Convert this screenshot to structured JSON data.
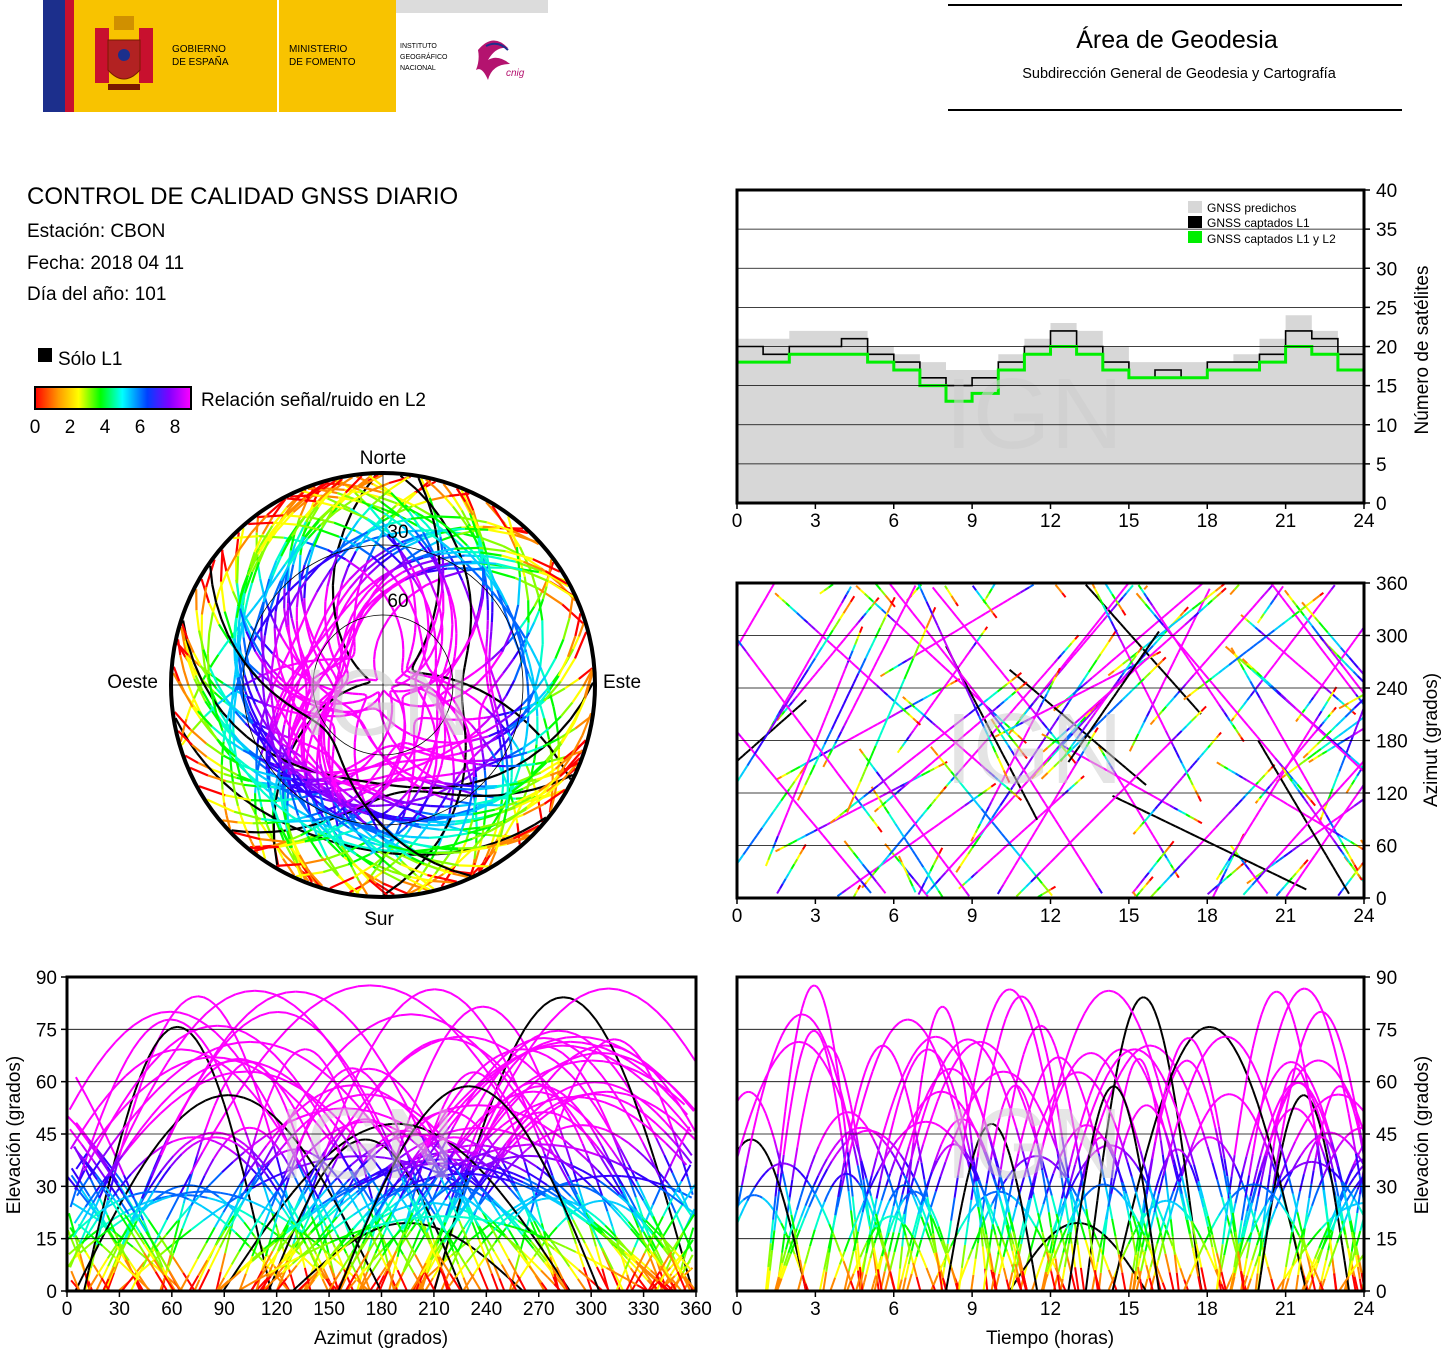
{
  "header": {
    "gov_line1": "GOBIERNO",
    "gov_line2": "DE ESPAÑA",
    "min_line1": "MINISTERIO",
    "min_line2": "DE FOMENTO",
    "ign_line1": "INSTITUTO",
    "ign_line2": "GEOGRÁFICO",
    "ign_line3": "NACIONAL",
    "cnig": "cnig",
    "area_title": "Área de Geodesia",
    "area_subtitle": "Subdirección General de Geodesia y Cartografía"
  },
  "info": {
    "title": "CONTROL DE CALIDAD GNSS DIARIO",
    "station": "Estación: CBON",
    "date": "Fecha: 2018 04 11",
    "doy": "Día del año: 101"
  },
  "legend": {
    "l1_only": "Sólo L1",
    "snr_label": "Relación señal/ruido en L2",
    "snr_ticks": [
      "0",
      "2",
      "4",
      "6",
      "8"
    ]
  },
  "watermark": "IGN",
  "colors": {
    "predicted": "#d7d7d7",
    "captured_l1": "#000000",
    "captured_l1l2": "#00ee00",
    "frame": "#000000",
    "grid": "#000000"
  },
  "chart_data": [
    {
      "id": "skyplot",
      "type": "scatter",
      "projection": "polar",
      "directions": {
        "north": "Norte",
        "south": "Sur",
        "east": "Este",
        "west": "Oeste"
      },
      "rings": [
        "30",
        "60"
      ],
      "r_ticks": [
        30,
        60
      ]
    },
    {
      "id": "satellites",
      "type": "line",
      "ylabel": "Número de satélites",
      "xlim": [
        0,
        24
      ],
      "ylim": [
        0,
        40
      ],
      "x_ticks": [
        "0",
        "3",
        "6",
        "9",
        "12",
        "15",
        "18",
        "21",
        "24"
      ],
      "y_ticks": [
        "0",
        "5",
        "10",
        "15",
        "20",
        "25",
        "30",
        "35",
        "40"
      ],
      "grid": true,
      "legend_position": "top-right",
      "series": [
        {
          "name": "GNSS predichos",
          "color": "#d7d7d7",
          "x": [
            0,
            1,
            2,
            3,
            4,
            5,
            6,
            7,
            8,
            9,
            10,
            11,
            12,
            13,
            14,
            15,
            16,
            17,
            18,
            19,
            20,
            21,
            22,
            23,
            24
          ],
          "values": [
            21,
            21,
            22,
            22,
            22,
            20,
            19,
            18,
            17,
            17,
            19,
            21,
            23,
            22,
            20,
            18,
            18,
            18,
            18,
            19,
            21,
            24,
            22,
            20,
            20
          ]
        },
        {
          "name": "GNSS captados L1",
          "color": "#000000",
          "x": [
            0,
            1,
            2,
            3,
            4,
            5,
            6,
            7,
            8,
            9,
            10,
            11,
            12,
            13,
            14,
            15,
            16,
            17,
            18,
            19,
            20,
            21,
            22,
            23,
            24
          ],
          "values": [
            20,
            19,
            20,
            20,
            21,
            19,
            18,
            16,
            15,
            16,
            18,
            20,
            22,
            20,
            18,
            16,
            17,
            16,
            18,
            18,
            19,
            22,
            21,
            19,
            19
          ]
        },
        {
          "name": "GNSS captados L1 y L2",
          "color": "#00ee00",
          "x": [
            0,
            1,
            2,
            3,
            4,
            5,
            6,
            7,
            8,
            9,
            10,
            11,
            12,
            13,
            14,
            15,
            16,
            17,
            18,
            19,
            20,
            21,
            22,
            23,
            24
          ],
          "values": [
            18,
            18,
            19,
            19,
            19,
            18,
            17,
            15,
            13,
            14,
            17,
            19,
            20,
            19,
            17,
            16,
            16,
            16,
            17,
            17,
            18,
            20,
            19,
            17,
            18
          ]
        }
      ]
    },
    {
      "id": "azimuth_time",
      "type": "scatter",
      "ylabel": "Azimut (grados)",
      "xlim": [
        0,
        24
      ],
      "ylim": [
        0,
        360
      ],
      "x_ticks": [
        "0",
        "3",
        "6",
        "9",
        "12",
        "15",
        "18",
        "21",
        "24"
      ],
      "y_ticks": [
        "0",
        "60",
        "120",
        "180",
        "240",
        "300",
        "360"
      ],
      "grid": true
    },
    {
      "id": "elevation_azimuth",
      "type": "scatter",
      "xlabel": "Azimut (grados)",
      "ylabel": "Elevación (grados)",
      "xlim": [
        0,
        360
      ],
      "ylim": [
        0,
        90
      ],
      "x_ticks": [
        "0",
        "30",
        "60",
        "90",
        "120",
        "150",
        "180",
        "210",
        "240",
        "270",
        "300",
        "330",
        "360"
      ],
      "y_ticks": [
        "0",
        "15",
        "30",
        "45",
        "60",
        "75",
        "90"
      ],
      "grid": true
    },
    {
      "id": "elevation_time",
      "type": "scatter",
      "xlabel": "Tiempo (horas)",
      "ylabel": "Elevación (grados)",
      "xlim": [
        0,
        24
      ],
      "ylim": [
        0,
        90
      ],
      "x_ticks": [
        "0",
        "3",
        "6",
        "9",
        "12",
        "15",
        "18",
        "21",
        "24"
      ],
      "y_ticks": [
        "0",
        "15",
        "30",
        "45",
        "60",
        "75",
        "90"
      ],
      "grid": true
    }
  ]
}
